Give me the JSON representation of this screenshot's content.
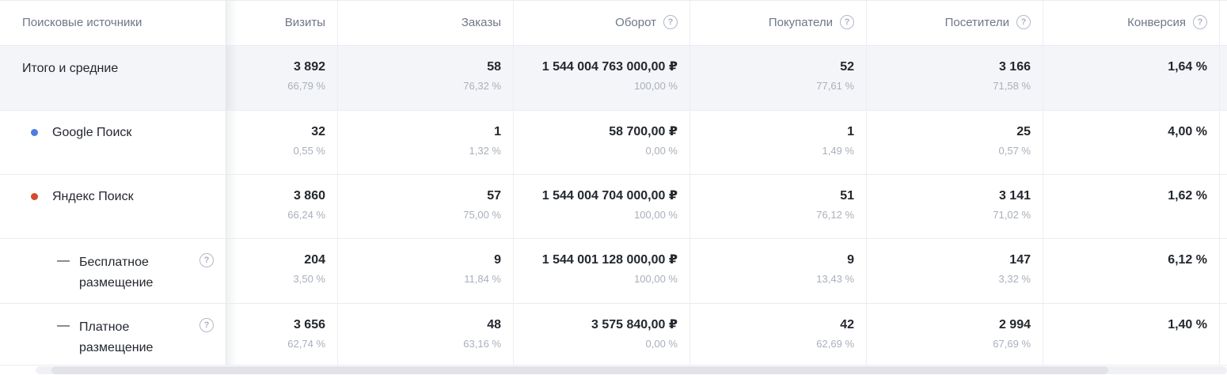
{
  "table": {
    "columns": [
      {
        "id": "source",
        "label": "Поисковые источники",
        "help": false
      },
      {
        "id": "visits",
        "label": "Визиты",
        "help": false
      },
      {
        "id": "orders",
        "label": "Заказы",
        "help": false
      },
      {
        "id": "revenue",
        "label": "Оборот",
        "help": true
      },
      {
        "id": "buyers",
        "label": "Покупатели",
        "help": true
      },
      {
        "id": "visitors",
        "label": "Посетители",
        "help": true
      },
      {
        "id": "conversion",
        "label": "Конверсия",
        "help": true
      }
    ],
    "rows": [
      {
        "id": "totals",
        "type": "total",
        "label": "Итого и средние",
        "cells": [
          {
            "value": "3 892",
            "share": "66,79 %"
          },
          {
            "value": "58",
            "share": "76,32 %"
          },
          {
            "value": "1 544 004 763 000,00 ₽",
            "share": "100,00 %"
          },
          {
            "value": "52",
            "share": "77,61 %"
          },
          {
            "value": "3 166",
            "share": "71,58 %"
          },
          {
            "value": "1,64 %",
            "share": ""
          }
        ]
      },
      {
        "id": "google-search",
        "type": "source",
        "label": "Google Поиск",
        "dot_color": "#4c7de0",
        "cells": [
          {
            "value": "32",
            "share": "0,55 %"
          },
          {
            "value": "1",
            "share": "1,32 %"
          },
          {
            "value": "58 700,00 ₽",
            "share": "0,00 %"
          },
          {
            "value": "1",
            "share": "1,49 %"
          },
          {
            "value": "25",
            "share": "0,57 %"
          },
          {
            "value": "4,00 %",
            "share": ""
          }
        ]
      },
      {
        "id": "yandex-search",
        "type": "source",
        "label": "Яндекс Поиск",
        "dot_color": "#d6492d",
        "cells": [
          {
            "value": "3 860",
            "share": "66,24 %"
          },
          {
            "value": "57",
            "share": "75,00 %"
          },
          {
            "value": "1 544 004 704 000,00 ₽",
            "share": "100,00 %"
          },
          {
            "value": "51",
            "share": "76,12 %"
          },
          {
            "value": "3 141",
            "share": "71,02 %"
          },
          {
            "value": "1,62 %",
            "share": ""
          }
        ]
      },
      {
        "id": "free-placement",
        "type": "sub",
        "label": "Бесплатное размещение",
        "help": true,
        "dash": "—",
        "cells": [
          {
            "value": "204",
            "share": "3,50 %"
          },
          {
            "value": "9",
            "share": "11,84 %"
          },
          {
            "value": "1 544 001 128 000,00 ₽",
            "share": "100,00 %"
          },
          {
            "value": "9",
            "share": "13,43 %"
          },
          {
            "value": "147",
            "share": "3,32 %"
          },
          {
            "value": "6,12 %",
            "share": ""
          }
        ]
      },
      {
        "id": "paid-placement",
        "type": "sub",
        "label": "Платное размещение",
        "help": true,
        "dash": "—",
        "cells": [
          {
            "value": "3 656",
            "share": "62,74 %"
          },
          {
            "value": "48",
            "share": "63,16 %"
          },
          {
            "value": "3 575 840,00 ₽",
            "share": "0,00 %"
          },
          {
            "value": "42",
            "share": "62,69 %"
          },
          {
            "value": "2 994",
            "share": "67,69 %"
          },
          {
            "value": "1,40 %",
            "share": ""
          }
        ]
      }
    ]
  },
  "icons": {
    "help_glyph": "?"
  },
  "colors": {
    "total_row_bg": "#f4f5f8",
    "google_dot": "#4c7de0",
    "yandex_dot": "#d6492d",
    "value_text": "#23272e",
    "share_text": "#a9afba",
    "header_text": "#6e7889"
  }
}
